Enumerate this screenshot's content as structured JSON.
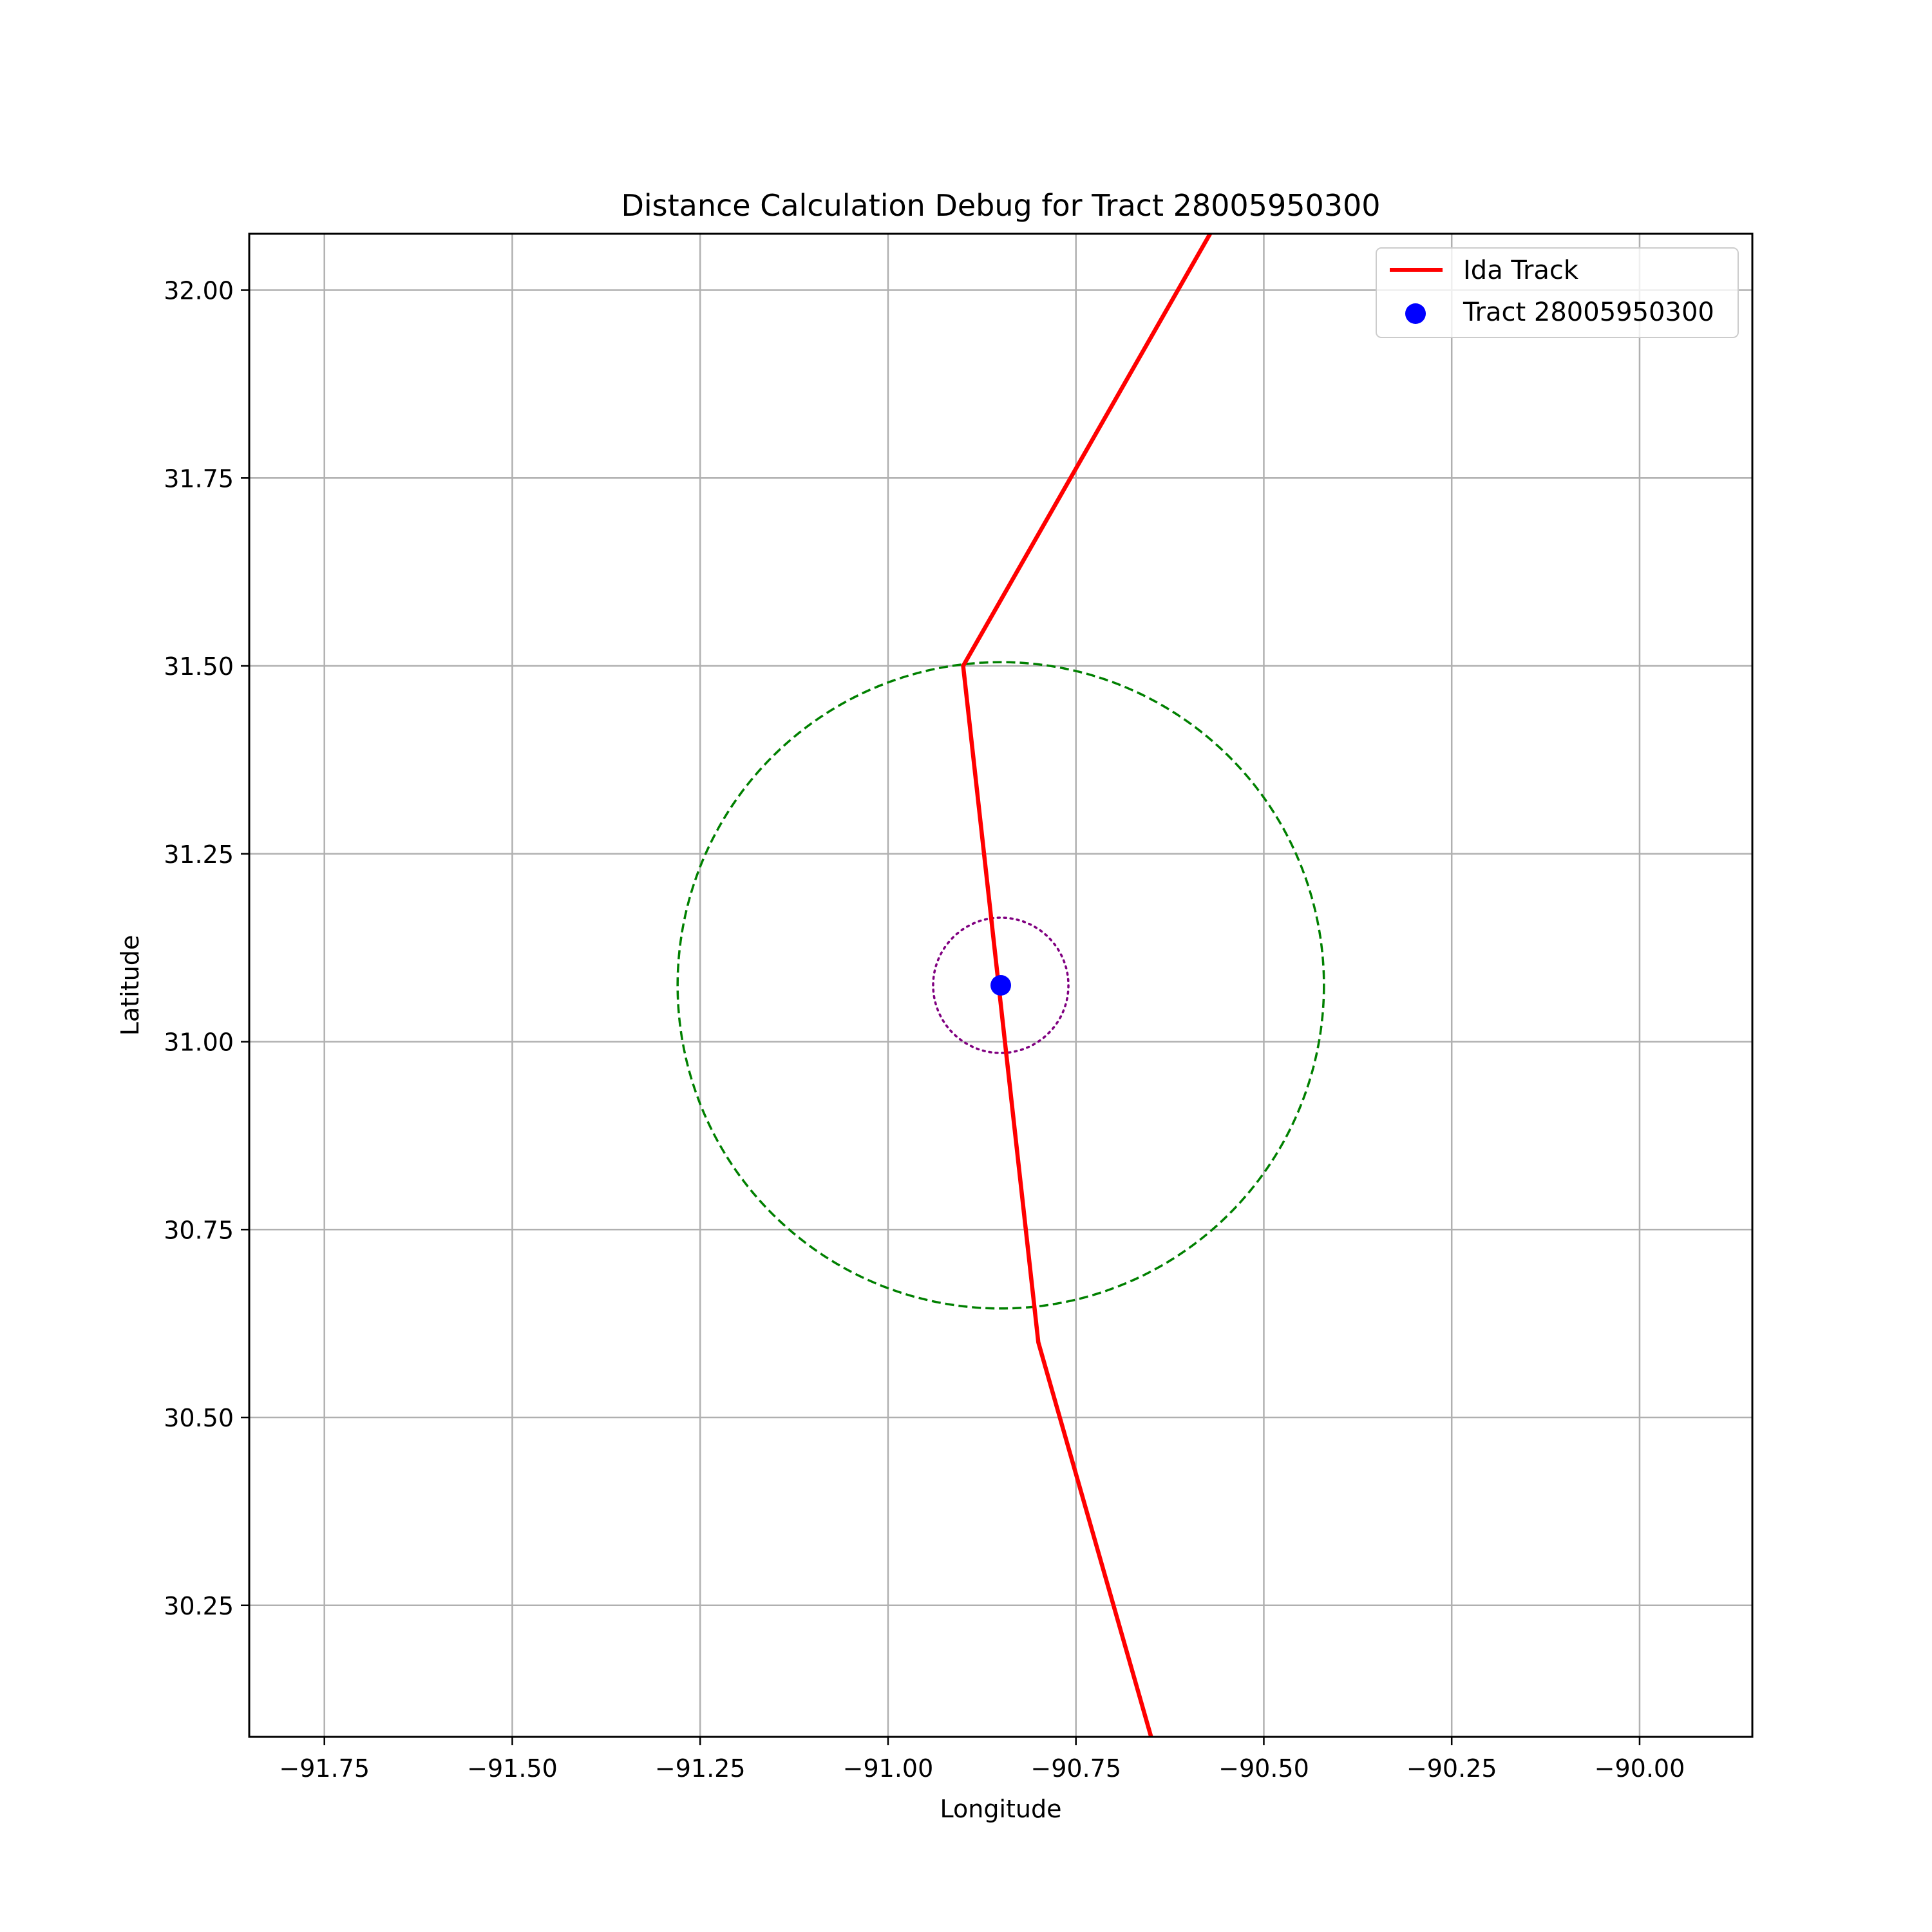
{
  "chart_data": {
    "type": "line",
    "title": "Distance Calculation Debug for Tract 28005950300",
    "xlabel": "Longitude",
    "ylabel": "Latitude",
    "xlim": [
      -91.85,
      -89.85
    ],
    "ylim": [
      30.075,
      32.075
    ],
    "grid": true,
    "legend_position": "top-right",
    "x_ticks": [
      -91.75,
      -91.5,
      -91.25,
      -91.0,
      -90.75,
      -90.5,
      -90.25,
      -90.0
    ],
    "y_ticks": [
      30.25,
      30.5,
      30.75,
      31.0,
      31.25,
      31.5,
      31.75,
      32.0
    ],
    "x_tick_labels": [
      "−91.75",
      "−91.50",
      "−91.25",
      "−91.00",
      "−90.75",
      "−90.50",
      "−90.25",
      "−90.00"
    ],
    "y_tick_labels": [
      "30.25",
      "30.50",
      "30.75",
      "31.00",
      "31.25",
      "31.50",
      "31.75",
      "32.00"
    ],
    "series": [
      {
        "name": "Ida Track",
        "kind": "line",
        "color": "#ff0000",
        "points": [
          [
            -90.6,
            29.9
          ],
          [
            -90.8,
            30.6
          ],
          [
            -90.9,
            31.5
          ],
          [
            -90.5,
            32.2
          ]
        ]
      },
      {
        "name": "Tract 28005950300",
        "kind": "scatter",
        "color": "#0000ff",
        "points": [
          [
            -90.85,
            31.075
          ]
        ]
      }
    ],
    "circles": [
      {
        "center": [
          -90.85,
          31.075
        ],
        "radius_deg": 0.43,
        "color": "#008000",
        "style": "dashed"
      },
      {
        "center": [
          -90.85,
          31.075
        ],
        "radius_deg": 0.09,
        "color": "#800080",
        "style": "dotted"
      }
    ]
  }
}
